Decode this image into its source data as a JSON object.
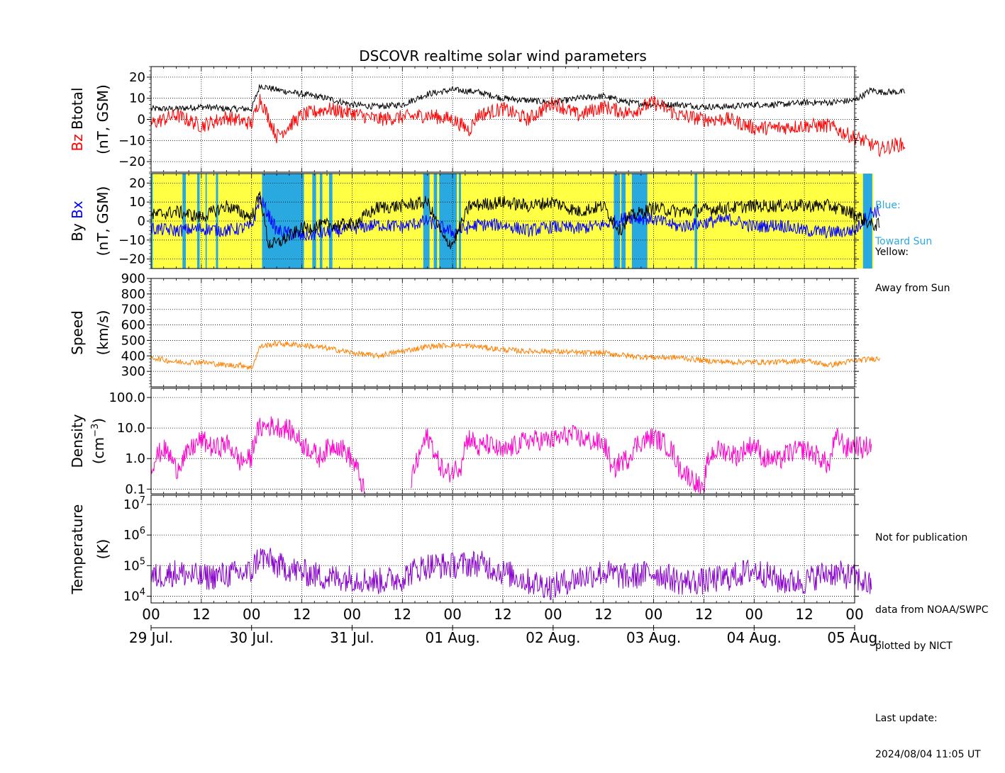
{
  "title": "DSCOVR realtime solar wind parameters",
  "colors": {
    "btotal": "#000000",
    "bz": "#ff0000",
    "bx": "#0000ff",
    "by": "#000000",
    "speed": "#ff8000",
    "density": "#ff00cc",
    "temperature": "#8800cc",
    "toward_sun": "#2aa8e0",
    "away_from_sun": "#ffff44"
  },
  "side_notes": {
    "blue_label": "Blue:",
    "blue_desc": "Toward Sun",
    "yellow_label": "Yellow:",
    "yellow_desc": "Away from Sun",
    "not_for_pub": "Not for publication",
    "data_from": "data from NOAA/SWPC",
    "plotted_by": "plotted by NICT",
    "last_update_label": "Last update:",
    "last_update_value": "2024/08/04 11:05 UT"
  },
  "chart_data": [
    {
      "type": "line",
      "panel": "magnetic-field",
      "ylabel_parts": [
        "Bz",
        "Btotal",
        "(nT, GSM)"
      ],
      "ylim": [
        -25,
        25
      ],
      "yticks": [
        "20",
        "10",
        "0",
        "−10",
        "−20"
      ],
      "ytick_values": [
        20,
        10,
        0,
        -10,
        -20
      ],
      "x_unit": "hours since 29 Jul. 00 UT",
      "series": [
        {
          "name": "Btotal",
          "x": [
            0,
            6,
            12,
            18,
            24,
            26,
            30,
            36,
            42,
            48,
            54,
            60,
            66,
            72,
            78,
            84,
            90,
            96,
            102,
            108,
            114,
            120,
            126,
            132,
            138,
            144,
            150,
            156,
            162,
            168,
            172,
            174,
            176,
            180
          ],
          "y": [
            5,
            5,
            6,
            5,
            5,
            16,
            14,
            12,
            10,
            7,
            6,
            7,
            12,
            14,
            13,
            10,
            9,
            8,
            10,
            11,
            8,
            7,
            7,
            6,
            6,
            7,
            7,
            8,
            8,
            9,
            14,
            13,
            13,
            13
          ]
        },
        {
          "name": "Bz",
          "x": [
            0,
            6,
            12,
            18,
            24,
            26,
            30,
            36,
            42,
            48,
            54,
            60,
            66,
            72,
            76,
            78,
            84,
            90,
            96,
            102,
            108,
            114,
            120,
            126,
            132,
            138,
            144,
            150,
            156,
            162,
            166,
            170,
            174,
            178,
            180
          ],
          "y": [
            -2,
            2,
            -3,
            1,
            -2,
            10,
            -8,
            2,
            5,
            3,
            0,
            1,
            2,
            0,
            -5,
            2,
            5,
            0,
            8,
            2,
            6,
            3,
            8,
            2,
            0,
            0,
            -4,
            -4,
            -3,
            -3,
            -7,
            -10,
            -14,
            -12,
            -12
          ]
        }
      ]
    },
    {
      "type": "line",
      "panel": "bx-by",
      "ylabel_parts": [
        "By",
        "Bx",
        "(nT, GSM)"
      ],
      "ylim": [
        -25,
        25
      ],
      "yticks": [
        "20",
        "10",
        "0",
        "−10",
        "−20"
      ],
      "ytick_values": [
        20,
        10,
        0,
        -10,
        -20
      ],
      "sector_background": {
        "legend": [
          "Blue: Toward Sun",
          "Yellow: Away from Sun"
        ],
        "toward_sun_hours": [
          [
            0,
            0.4
          ],
          [
            7.5,
            8.3
          ],
          [
            11,
            11.6
          ],
          [
            13,
            13.3
          ],
          [
            15.5,
            16
          ],
          [
            26.5,
            36.5
          ],
          [
            38.5,
            39.4
          ],
          [
            40.3,
            40.9
          ],
          [
            42.5,
            43.3
          ],
          [
            65,
            66.5
          ],
          [
            67.5,
            68.3
          ],
          [
            68.8,
            73
          ],
          [
            73.5,
            74
          ],
          [
            110.5,
            112
          ],
          [
            112.3,
            113.3
          ],
          [
            114.8,
            118.5
          ],
          [
            129.8,
            130.4
          ],
          [
            170,
            172.2
          ]
        ],
        "range_hours": [
          0,
          172.5
        ]
      },
      "series": [
        {
          "name": "Bx",
          "x": [
            0,
            6,
            12,
            18,
            24,
            26,
            30,
            36,
            42,
            48,
            54,
            60,
            66,
            72,
            78,
            84,
            90,
            96,
            102,
            108,
            114,
            120,
            126,
            132,
            138,
            144,
            150,
            156,
            162,
            168,
            172,
            174
          ],
          "y": [
            -4,
            -5,
            -4,
            -5,
            -3,
            12,
            -5,
            -8,
            -6,
            -4,
            -2,
            -3,
            0,
            -6,
            -2,
            -2,
            -5,
            -3,
            -4,
            -2,
            2,
            1,
            -3,
            -1,
            1,
            -3,
            -2,
            -5,
            -6,
            -5,
            5,
            5
          ]
        },
        {
          "name": "By",
          "x": [
            0,
            6,
            12,
            18,
            24,
            26,
            28,
            30,
            36,
            42,
            48,
            54,
            60,
            66,
            70,
            72,
            76,
            84,
            90,
            96,
            102,
            108,
            112,
            114,
            120,
            126,
            132,
            138,
            144,
            150,
            156,
            162,
            168,
            172,
            174
          ],
          "y": [
            3,
            5,
            2,
            8,
            2,
            14,
            -12,
            -12,
            -4,
            -2,
            -2,
            7,
            8,
            10,
            -10,
            -12,
            8,
            10,
            8,
            10,
            5,
            8,
            -5,
            2,
            7,
            5,
            6,
            7,
            8,
            8,
            8,
            8,
            4,
            -2,
            -2
          ]
        }
      ]
    },
    {
      "type": "line",
      "panel": "speed",
      "ylabel_parts": [
        "Speed",
        "(km/s)"
      ],
      "ylim": [
        200,
        900
      ],
      "yticks": [
        "900",
        "800",
        "700",
        "600",
        "500",
        "400",
        "300"
      ],
      "ytick_values": [
        900,
        800,
        700,
        600,
        500,
        400,
        300
      ],
      "series": [
        {
          "name": "Speed",
          "x": [
            0,
            6,
            12,
            18,
            22,
            24,
            26,
            30,
            36,
            42,
            48,
            54,
            60,
            66,
            72,
            78,
            84,
            90,
            96,
            102,
            108,
            114,
            120,
            126,
            132,
            138,
            144,
            150,
            156,
            162,
            168,
            172,
            174
          ],
          "y": [
            390,
            360,
            360,
            340,
            340,
            320,
            460,
            480,
            470,
            450,
            420,
            400,
            430,
            460,
            470,
            460,
            440,
            430,
            430,
            420,
            420,
            400,
            390,
            390,
            370,
            360,
            360,
            360,
            370,
            340,
            370,
            380,
            385
          ]
        }
      ]
    },
    {
      "type": "line",
      "panel": "density",
      "ylabel_parts": [
        "Density",
        "(cm",
        "−3",
        ")"
      ],
      "yscale": "log",
      "ylim": [
        0.07,
        200
      ],
      "yticks": [
        "100.0",
        "10.0",
        "1.0",
        "0.1"
      ],
      "ytick_values": [
        100,
        10,
        1,
        0.1
      ],
      "series": [
        {
          "name": "Density",
          "x": [
            0,
            3,
            6,
            9,
            12,
            15,
            18,
            21,
            24,
            26,
            28,
            32,
            36,
            40,
            44,
            48,
            50,
            51
          ],
          "y": [
            0.5,
            2,
            0.4,
            1.5,
            4,
            2,
            3,
            0.8,
            1,
            10,
            12,
            10,
            3,
            1,
            3,
            0.8,
            0.2,
            0.05
          ]
        },
        {
          "name": "Density",
          "x": [
            62,
            64,
            66,
            68,
            70,
            72,
            74,
            76,
            78,
            80,
            84,
            88,
            90,
            96,
            100,
            104,
            108,
            110,
            112,
            114,
            116,
            120,
            124,
            126,
            128,
            132,
            134,
            136,
            140,
            144,
            146,
            148,
            150,
            152,
            156,
            160,
            162,
            164,
            166,
            168,
            170,
            172
          ],
          "y": [
            0.1,
            1,
            5,
            1,
            0.3,
            0.4,
            0.6,
            5,
            2,
            3,
            1.5,
            3,
            4,
            4,
            6,
            4,
            3,
            0.3,
            0.8,
            1,
            3,
            5,
            2,
            0.5,
            0.3,
            0.05,
            1.5,
            2,
            1.2,
            3,
            1,
            1,
            0.8,
            1.5,
            2,
            1,
            0.5,
            5,
            2,
            3,
            2,
            3
          ]
        }
      ]
    },
    {
      "type": "line",
      "panel": "temperature",
      "ylabel_parts": [
        "Temperature",
        "(K)"
      ],
      "yscale": "log",
      "ylim": [
        6000,
        20000000
      ],
      "yticks": [
        "10^7",
        "10^6",
        "10^5",
        "10^4"
      ],
      "ytick_values": [
        10000000,
        1000000,
        100000,
        10000
      ],
      "series": [
        {
          "name": "Temperature",
          "x": [
            0,
            6,
            12,
            18,
            24,
            26,
            30,
            36,
            42,
            48,
            54,
            60,
            66,
            72,
            78,
            84,
            90,
            96,
            102,
            108,
            114,
            120,
            126,
            132,
            138,
            144,
            150,
            156,
            162,
            168,
            172
          ],
          "y": [
            40000,
            60000,
            40000,
            50000,
            60000,
            200000,
            100000,
            60000,
            40000,
            40000,
            30000,
            40000,
            100000,
            100000,
            120000,
            60000,
            30000,
            20000,
            40000,
            60000,
            40000,
            60000,
            30000,
            30000,
            40000,
            70000,
            30000,
            30000,
            60000,
            40000,
            20000
          ]
        }
      ]
    }
  ],
  "x_axis": {
    "hour_labels": [
      "00",
      "12",
      "00",
      "12",
      "00",
      "12",
      "00",
      "12",
      "00",
      "12",
      "00",
      "12",
      "00",
      "12",
      "00"
    ],
    "date_labels": [
      "29 Jul.",
      "30 Jul.",
      "31 Jul.",
      "01 Aug.",
      "02 Aug.",
      "03 Aug.",
      "04 Aug.",
      "05 Aug."
    ],
    "range_hours": [
      0,
      168
    ]
  }
}
